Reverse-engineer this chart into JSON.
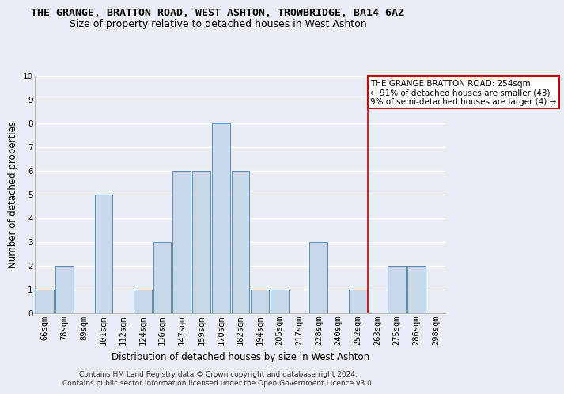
{
  "title_line1": "THE GRANGE, BRATTON ROAD, WEST ASHTON, TROWBRIDGE, BA14 6AZ",
  "title_line2": "Size of property relative to detached houses in West Ashton",
  "xlabel": "Distribution of detached houses by size in West Ashton",
  "ylabel": "Number of detached properties",
  "categories": [
    "66sqm",
    "78sqm",
    "89sqm",
    "101sqm",
    "112sqm",
    "124sqm",
    "136sqm",
    "147sqm",
    "159sqm",
    "170sqm",
    "182sqm",
    "194sqm",
    "205sqm",
    "217sqm",
    "228sqm",
    "240sqm",
    "252sqm",
    "263sqm",
    "275sqm",
    "286sqm",
    "298sqm"
  ],
  "values": [
    1,
    2,
    0,
    5,
    0,
    1,
    3,
    6,
    6,
    8,
    6,
    1,
    1,
    0,
    3,
    0,
    1,
    0,
    2,
    2,
    0
  ],
  "bar_color": "#c8d8ea",
  "bar_edge_color": "#5b8db8",
  "ylim": [
    0,
    10
  ],
  "yticks": [
    0,
    1,
    2,
    3,
    4,
    5,
    6,
    7,
    8,
    9,
    10
  ],
  "annotation_box_text": "THE GRANGE BRATTON ROAD: 254sqm\n← 91% of detached houses are smaller (43)\n9% of semi-detached houses are larger (4) →",
  "annotation_box_color": "#cc0000",
  "footer_text": "Contains HM Land Registry data © Crown copyright and database right 2024.\nContains public sector information licensed under the Open Government Licence v3.0.",
  "background_color": "#e8eef4",
  "grid_color": "#ffffff",
  "title_fontsize": 9.5,
  "subtitle_fontsize": 9,
  "tick_fontsize": 7.5,
  "ylabel_fontsize": 8.5,
  "xlabel_fontsize": 8.5,
  "annotation_fontsize": 7.5,
  "footer_fontsize": 6.5,
  "red_line_x": 16.5
}
